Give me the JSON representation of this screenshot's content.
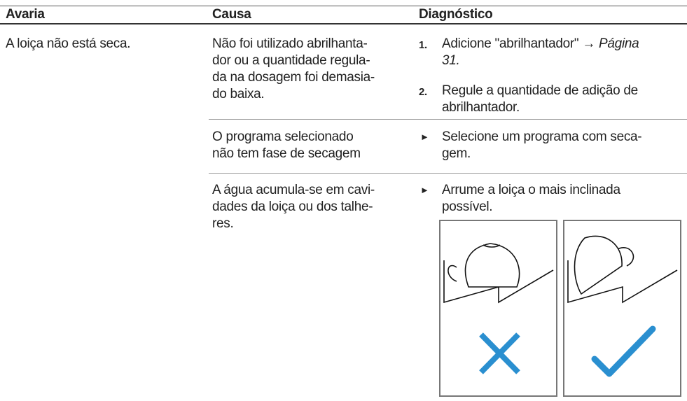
{
  "header": {
    "columns": [
      "Avaria",
      "Causa",
      "Diagnóstico"
    ]
  },
  "table": {
    "rows": [
      {
        "fault": "A loiça não está seca.",
        "causes": [
          {
            "cause": [
              "Não foi utilizado abrilhanta-",
              "dor ou a quantidade regula-",
              "da na dosagem foi demasia-",
              "do baixa."
            ],
            "steps": [
              {
                "number": "1.",
                "text": "Adicione \"abrilhantador\" →",
                "link": [
                  "Página",
                  "31."
                ]
              },
              {
                "number": "2.",
                "lines": [
                  "Regule a quantidade de adição de",
                  "abrilhantador."
                ]
              }
            ]
          },
          {
            "cause": [
              "O programa selecionado",
              "não tem fase de secagem"
            ],
            "action": [
              "Selecione um programa com seca-",
              "gem."
            ]
          },
          {
            "cause": [
              "A água acumula-se em cavi-",
              "dades da loiça ou dos talhe-",
              "res."
            ],
            "action": [
              "Arrume a loiça o mais inclinada",
              "possível."
            ]
          }
        ]
      }
    ]
  }
}
